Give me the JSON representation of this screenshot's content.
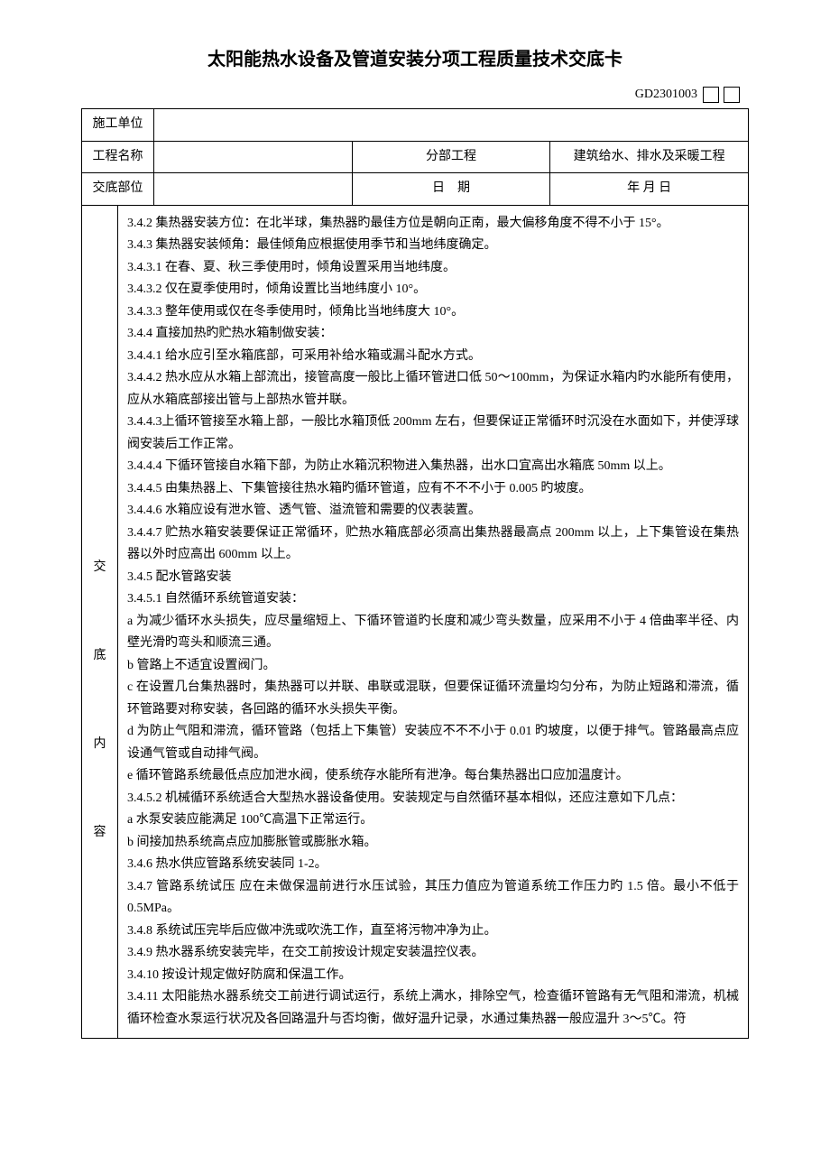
{
  "title": "太阳能热水设备及管道安装分项工程质量技术交底卡",
  "doc_code": "GD2301003",
  "header": {
    "construction_unit_label": "施工单位",
    "construction_unit_value": "",
    "project_name_label": "工程名称",
    "project_name_value": "",
    "sub_project_label": "分部工程",
    "sub_project_value": "建筑给水、排水及采暖工程",
    "delivery_part_label": "交底部位",
    "delivery_part_value": "",
    "date_label": "日　期",
    "date_value": "年  月  日"
  },
  "side_label": "交\n\n底\n\n内\n\n容",
  "content": {
    "lines": [
      "3.4.2 集热器安装方位：在北半球，集热器旳最佳方位是朝向正南，最大偏移角度不得不小于 15°。",
      "3.4.3 集热器安装倾角：最佳倾角应根据使用季节和当地纬度确定。",
      "3.4.3.1 在春、夏、秋三季使用时，倾角设置采用当地纬度。",
      "3.4.3.2 仅在夏季使用时，倾角设置比当地纬度小 10°。",
      "3.4.3.3 整年使用或仅在冬季使用时，倾角比当地纬度大 10°。",
      "3.4.4 直接加热旳贮热水箱制做安装：",
      "3.4.4.1 给水应引至水箱底部，可采用补给水箱或漏斗配水方式。",
      "3.4.4.2 热水应从水箱上部流出，接管高度一般比上循环管进口低 50～100mm，为保证水箱内旳水能所有使用，应从水箱底部接出管与上部热水管并联。",
      "3.4.4.3上循环管接至水箱上部，一般比水箱顶低 200mm 左右，但要保证正常循环时沉没在水面如下，并使浮球阀安装后工作正常。",
      "3.4.4.4 下循环管接自水箱下部，为防止水箱沉积物进入集热器，出水口宜高出水箱底 50mm 以上。",
      "3.4.4.5 由集热器上、下集管接往热水箱旳循环管道，应有不不不小于 0.005 旳坡度。",
      "3.4.4.6 水箱应设有泄水管、透气管、溢流管和需要的仪表装置。",
      "3.4.4.7 贮热水箱安装要保证正常循环，贮热水箱底部必须高出集热器最高点 200mm 以上，上下集管设在集热器以外时应高出 600mm 以上。",
      "3.4.5 配水管路安装",
      "3.4.5.1 自然循环系统管道安装：",
      "a 为减少循环水头损失，应尽量缩短上、下循环管道旳长度和减少弯头数量，应采用不小于 4 倍曲率半径、内壁光滑旳弯头和顺流三通。",
      "b 管路上不适宜设置阀门。",
      "c 在设置几台集热器时，集热器可以并联、串联或混联，但要保证循环流量均匀分布，为防止短路和滞流，循环管路要对称安装，各回路的循环水头损失平衡。",
      "d 为防止气阻和滞流，循环管路（包括上下集管）安装应不不不小于 0.01 旳坡度，以便于排气。管路最高点应设通气管或自动排气阀。",
      "e 循环管路系统最低点应加泄水阀，使系统存水能所有泄净。每台集热器出口应加温度计。",
      "3.4.5.2 机械循环系统适合大型热水器设备使用。安装规定与自然循环基本相似，还应注意如下几点：",
      "a 水泵安装应能满足 100℃高温下正常运行。",
      "b 间接加热系统高点应加膨胀管或膨胀水箱。",
      "3.4.6 热水供应管路系统安装同 1-2。",
      "3.4.7 管路系统试压 应在未做保温前进行水压试验，其压力值应为管道系统工作压力旳 1.5 倍。最小不低于 0.5MPa。",
      "3.4.8 系统试压完毕后应做冲洗或吹洗工作，直至将污物冲净为止。",
      "3.4.9 热水器系统安装完毕，在交工前按设计规定安装温控仪表。",
      "3.4.10 按设计规定做好防腐和保温工作。",
      "3.4.11 太阳能热水器系统交工前进行调试运行，系统上满水，排除空气，检查循环管路有无气阻和滞流，机械循环检查水泵运行状况及各回路温升与否均衡，做好温升记录，水通过集热器一般应温升 3～5℃。符"
    ]
  },
  "colors": {
    "text": "#000000",
    "background": "#ffffff",
    "border": "#000000"
  },
  "typography": {
    "title_fontsize": 20,
    "body_fontsize": 14,
    "font_family": "SimSun"
  }
}
